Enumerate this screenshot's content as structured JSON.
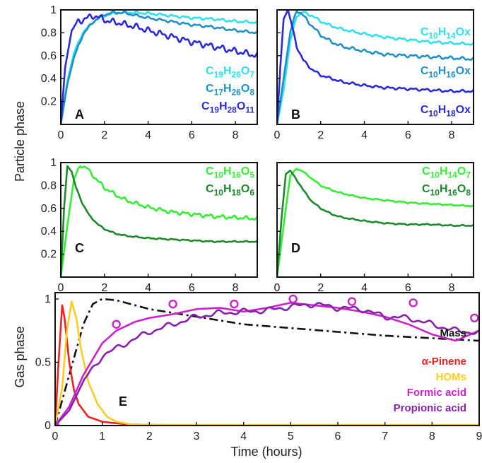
{
  "figure": {
    "shared_ylabel_top": "Particle phase"
  },
  "chart_data": [
    {
      "panel": "A",
      "type": "line",
      "xlim": [
        0,
        9
      ],
      "ylim": [
        0,
        1
      ],
      "xticks": [
        0,
        2,
        4,
        6,
        8
      ],
      "yticks": [
        0.2,
        0.4,
        0.6,
        0.8,
        1
      ],
      "ytick_labels": [
        "0.2",
        "0.4",
        "0.6",
        "0.8",
        "1"
      ],
      "show_x_labels": true,
      "show_y_labels": true,
      "legend": "right, stacked below curves",
      "series": [
        {
          "name": "C19H26O7",
          "color": "#2ee0f0",
          "x": [
            0,
            0.3,
            0.6,
            1.0,
            1.5,
            2.0,
            2.5,
            3.0,
            3.5,
            4.0,
            5.0,
            6.0,
            7.0,
            8.0,
            9.0
          ],
          "y": [
            0,
            0.38,
            0.62,
            0.8,
            0.9,
            0.95,
            0.97,
            0.98,
            0.975,
            0.97,
            0.95,
            0.93,
            0.92,
            0.9,
            0.89
          ],
          "noise": 0.012
        },
        {
          "name": "C17H26O8",
          "color": "#1f90c8",
          "x": [
            0,
            0.3,
            0.6,
            1.0,
            1.5,
            2.0,
            2.5,
            3.0,
            3.5,
            4.0,
            5.0,
            6.0,
            7.0,
            8.0,
            9.0
          ],
          "y": [
            0,
            0.35,
            0.58,
            0.78,
            0.9,
            0.96,
            0.98,
            0.97,
            0.95,
            0.93,
            0.9,
            0.87,
            0.85,
            0.82,
            0.8
          ],
          "noise": 0.012
        },
        {
          "name": "C19H28O11",
          "color": "#2a2ad8",
          "x": [
            0,
            0.2,
            0.5,
            0.8,
            1.1,
            1.5,
            1.8,
            2.2,
            2.6,
            3.0,
            3.5,
            4.0,
            5.0,
            6.0,
            7.0,
            8.0,
            9.0
          ],
          "y": [
            0,
            0.5,
            0.82,
            0.9,
            0.92,
            0.95,
            0.93,
            0.9,
            0.89,
            0.87,
            0.85,
            0.82,
            0.77,
            0.72,
            0.68,
            0.64,
            0.6
          ],
          "noise": 0.03
        }
      ]
    },
    {
      "panel": "B",
      "type": "line",
      "xlim": [
        0,
        9
      ],
      "ylim": [
        0,
        1
      ],
      "xticks": [
        0,
        2,
        4,
        6,
        8
      ],
      "yticks": [
        0.2,
        0.4,
        0.6,
        0.8,
        1
      ],
      "show_x_labels": true,
      "show_y_labels": false,
      "legend": "right, stacked",
      "series": [
        {
          "name": "C10H14Ox",
          "color": "#2ee0f0",
          "x": [
            0,
            0.3,
            0.6,
            0.9,
            1.2,
            1.6,
            2.0,
            2.5,
            3.0,
            4.0,
            5.0,
            6.0,
            7.0,
            8.0,
            9.0
          ],
          "y": [
            0,
            0.3,
            0.72,
            0.95,
            0.98,
            0.95,
            0.9,
            0.86,
            0.83,
            0.79,
            0.76,
            0.74,
            0.72,
            0.71,
            0.7
          ],
          "noise": 0.012
        },
        {
          "name": "C10H16Ox",
          "color": "#1f90c8",
          "x": [
            0,
            0.3,
            0.6,
            0.9,
            1.2,
            1.6,
            2.0,
            2.5,
            3.0,
            4.0,
            5.0,
            6.0,
            7.0,
            8.0,
            9.0
          ],
          "y": [
            0,
            0.4,
            0.8,
            1.0,
            0.95,
            0.86,
            0.78,
            0.72,
            0.68,
            0.64,
            0.61,
            0.6,
            0.59,
            0.58,
            0.57
          ],
          "noise": 0.015
        },
        {
          "name": "C10H18Ox",
          "color": "#2a2ad8",
          "x": [
            0,
            0.15,
            0.3,
            0.5,
            0.7,
            0.9,
            1.2,
            1.6,
            2.0,
            2.5,
            3.0,
            4.0,
            5.0,
            6.0,
            7.0,
            8.0,
            9.0
          ],
          "y": [
            0,
            0.5,
            0.92,
            1.0,
            0.85,
            0.68,
            0.56,
            0.48,
            0.43,
            0.4,
            0.37,
            0.34,
            0.32,
            0.31,
            0.3,
            0.29,
            0.29
          ],
          "noise": 0.012
        }
      ]
    },
    {
      "panel": "C",
      "type": "line",
      "xlim": [
        0,
        9
      ],
      "ylim": [
        0,
        1
      ],
      "xticks": [
        0,
        2,
        4,
        6,
        8
      ],
      "yticks": [
        0.2,
        0.4,
        0.6,
        0.8,
        1
      ],
      "ytick_labels": [
        "0.2",
        "0.4",
        "0.6",
        "0.8",
        "1"
      ],
      "show_x_labels": true,
      "show_y_labels": true,
      "legend": "top-right",
      "series": [
        {
          "name": "C10H16O5",
          "color": "#33ee33",
          "x": [
            0,
            0.3,
            0.6,
            0.9,
            1.2,
            1.6,
            2.0,
            2.5,
            3.0,
            4.0,
            5.0,
            6.0,
            7.0,
            8.0,
            9.0
          ],
          "y": [
            0,
            0.45,
            0.85,
            0.98,
            0.95,
            0.86,
            0.78,
            0.72,
            0.67,
            0.61,
            0.57,
            0.55,
            0.53,
            0.52,
            0.51
          ],
          "noise": 0.018
        },
        {
          "name": "C10H18O6",
          "color": "#1c8a2c",
          "x": [
            0,
            0.15,
            0.3,
            0.5,
            0.7,
            1.0,
            1.3,
            1.7,
            2.0,
            2.5,
            3.0,
            4.0,
            5.0,
            6.0,
            7.0,
            8.0,
            9.0
          ],
          "y": [
            0,
            0.6,
            0.97,
            0.92,
            0.78,
            0.64,
            0.54,
            0.46,
            0.42,
            0.38,
            0.36,
            0.34,
            0.33,
            0.32,
            0.31,
            0.31,
            0.31
          ],
          "noise": 0.006
        }
      ]
    },
    {
      "panel": "D",
      "type": "line",
      "xlim": [
        0,
        9
      ],
      "ylim": [
        0,
        1
      ],
      "xticks": [
        0,
        2,
        4,
        6,
        8
      ],
      "yticks": [
        0.2,
        0.4,
        0.6,
        0.8,
        1
      ],
      "show_x_labels": true,
      "show_y_labels": false,
      "legend": "top-right",
      "series": [
        {
          "name": "C10H14O7",
          "color": "#33ee33",
          "x": [
            0,
            0.3,
            0.6,
            0.9,
            1.2,
            1.6,
            2.0,
            2.5,
            3.0,
            4.0,
            5.0,
            6.0,
            7.0,
            8.0,
            9.0
          ],
          "y": [
            0,
            0.45,
            0.88,
            0.95,
            0.92,
            0.86,
            0.8,
            0.76,
            0.73,
            0.69,
            0.67,
            0.65,
            0.64,
            0.63,
            0.62
          ],
          "noise": 0.006
        },
        {
          "name": "C10H16O8",
          "color": "#1c8a2c",
          "x": [
            0,
            0.2,
            0.4,
            0.6,
            0.9,
            1.2,
            1.6,
            2.0,
            2.5,
            3.0,
            4.0,
            5.0,
            6.0,
            7.0,
            8.0,
            9.0
          ],
          "y": [
            0,
            0.5,
            0.9,
            0.93,
            0.85,
            0.76,
            0.66,
            0.6,
            0.55,
            0.52,
            0.49,
            0.47,
            0.46,
            0.46,
            0.45,
            0.45
          ],
          "noise": 0.006
        }
      ]
    },
    {
      "panel": "E",
      "type": "line",
      "xlabel": "Time (hours)",
      "ylabel": "Gas phase",
      "xlim": [
        0,
        9
      ],
      "ylim": [
        0,
        1.05
      ],
      "xticks": [
        0,
        1,
        2,
        3,
        4,
        5,
        6,
        7,
        8,
        9
      ],
      "yticks": [
        0,
        0.5,
        1
      ],
      "xtick_labels": [
        "0",
        "1",
        "2",
        "3",
        "4",
        "5",
        "6",
        "7",
        "8",
        "9"
      ],
      "ytick_labels": [
        "0",
        "0.5",
        "1"
      ],
      "legend": "bottom-right",
      "series": [
        {
          "name": "Mass",
          "color": "#111111",
          "style": "dashdot",
          "x": [
            0,
            0.3,
            0.6,
            0.8,
            1.0,
            1.3,
            1.6,
            2.0,
            2.5,
            3.0,
            3.5,
            4.0,
            5.0,
            6.0,
            7.0,
            8.0,
            9.0
          ],
          "y": [
            0,
            0.4,
            0.8,
            0.96,
            1.0,
            0.99,
            0.96,
            0.92,
            0.89,
            0.86,
            0.83,
            0.8,
            0.77,
            0.74,
            0.71,
            0.69,
            0.67
          ],
          "noise": 0
        },
        {
          "name": "α-Pinene",
          "color": "#ee2222",
          "x": [
            0,
            0.08,
            0.15,
            0.2,
            0.3,
            0.4,
            0.5,
            0.7,
            1.0,
            1.5,
            2.0,
            3.0,
            9.0
          ],
          "y": [
            0,
            0.55,
            0.95,
            0.85,
            0.5,
            0.28,
            0.17,
            0.07,
            0.03,
            0.01,
            0.005,
            0.003,
            0.003
          ],
          "noise": 0
        },
        {
          "name": "HOMs",
          "color": "#ffcc22",
          "x": [
            0,
            0.15,
            0.25,
            0.35,
            0.45,
            0.55,
            0.7,
            0.9,
            1.1,
            1.3,
            1.6,
            2.0,
            9.0
          ],
          "y": [
            0,
            0.3,
            0.75,
            0.98,
            0.85,
            0.6,
            0.35,
            0.17,
            0.07,
            0.03,
            0.01,
            0.005,
            0.005
          ],
          "noise": 0
        },
        {
          "name": "Formic acid",
          "color": "#cc22cc",
          "x": [
            0,
            0.3,
            0.6,
            1.0,
            1.3,
            1.7,
            2.0,
            2.5,
            3.0,
            3.5,
            4.0,
            4.5,
            5.0,
            5.5,
            6.0,
            6.5,
            7.0,
            7.5,
            8.0,
            8.5,
            9.0
          ],
          "y": [
            0,
            0.15,
            0.4,
            0.65,
            0.75,
            0.82,
            0.85,
            0.88,
            0.92,
            0.93,
            0.9,
            0.93,
            0.97,
            0.95,
            0.93,
            0.9,
            0.86,
            0.8,
            0.72,
            0.67,
            0.75
          ],
          "noise": 0
        },
        {
          "name": "Propionic acid",
          "color": "#8822aa",
          "x": [
            0,
            0.3,
            0.6,
            1.0,
            1.5,
            2.0,
            2.5,
            3.0,
            3.5,
            4.0,
            4.5,
            5.0,
            5.5,
            6.0,
            6.5,
            7.0,
            7.5,
            8.0,
            8.5,
            9.0
          ],
          "y": [
            0,
            0.12,
            0.35,
            0.55,
            0.65,
            0.74,
            0.8,
            0.86,
            0.89,
            0.9,
            0.91,
            0.94,
            0.96,
            0.93,
            0.92,
            0.86,
            0.85,
            0.8,
            0.75,
            0.73
          ],
          "noise": 0.025
        },
        {
          "name": "Formic acid markers",
          "color": "#cc22cc",
          "style": "markers",
          "x": [
            0,
            1.3,
            2.5,
            3.8,
            5.05,
            6.3,
            7.6,
            8.9
          ],
          "y": [
            0,
            0.8,
            0.96,
            0.96,
            1.0,
            0.98,
            0.97,
            0.85
          ]
        }
      ]
    }
  ]
}
